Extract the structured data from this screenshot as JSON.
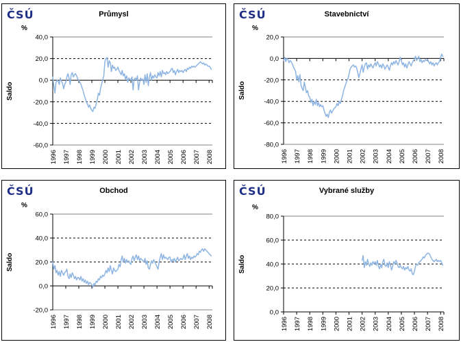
{
  "logo": {
    "text": "ČSÚ",
    "color": "#1F2F86"
  },
  "line_color": "#8DB4E2",
  "chart_data": [
    {
      "type": "line",
      "title": "Průmysl",
      "unit": "%",
      "ylabel": "Saldo",
      "series_name": "Saldo",
      "legend": "none",
      "grid": "dashed-horizontal",
      "ylim": [
        -60,
        40
      ],
      "yticks": [
        40,
        20,
        0,
        -20,
        -40,
        -60
      ],
      "ytick_labels": [
        "40,0",
        "20,0",
        "0,0",
        "-20,0",
        "-40,0",
        "-60,0"
      ],
      "x_years": [
        "1996",
        "1997",
        "1998",
        "1999",
        "2000",
        "2001",
        "2002",
        "2003",
        "2004",
        "2005",
        "2006",
        "2007",
        "2008"
      ],
      "xlim": [
        1996,
        2008.25
      ],
      "start": 1996.0,
      "points_per_year": 12,
      "monthly_values": [
        3,
        -5,
        -12,
        -2,
        0,
        -1,
        -4,
        2,
        -1,
        -3,
        -8,
        -4,
        -2,
        3,
        6,
        2,
        -4,
        5,
        7,
        3,
        5,
        6,
        4,
        1,
        0,
        -2,
        -4,
        -7,
        -10,
        -14,
        -17,
        -20,
        -22,
        -25,
        -23,
        -26,
        -28,
        -29,
        -25,
        -26,
        -22,
        -18,
        -12,
        -14,
        -8,
        -4,
        0,
        4,
        17,
        20,
        21,
        12,
        18,
        16,
        8,
        14,
        11,
        12,
        9,
        10,
        12,
        9,
        7,
        5,
        9,
        4,
        6,
        1,
        4,
        -2,
        2,
        1,
        0,
        3,
        -9,
        1,
        2,
        0,
        4,
        -9,
        -2,
        2,
        0,
        1,
        -4,
        5,
        -2,
        6,
        -5,
        3,
        7,
        0,
        4,
        2,
        5,
        3,
        2,
        7,
        4,
        8,
        3,
        9,
        6,
        7,
        5,
        8,
        6,
        7,
        8,
        10,
        11,
        7,
        9,
        5,
        8,
        10,
        7,
        9,
        8,
        9,
        7,
        9,
        10,
        8,
        11,
        10,
        12,
        11,
        13,
        12,
        13,
        12,
        13,
        14,
        15,
        16,
        17,
        16,
        15,
        16,
        14,
        15,
        14,
        13,
        13,
        12,
        10
      ]
    },
    {
      "type": "line",
      "title": "Stavebnictví",
      "unit": "%",
      "ylabel": "Saldo",
      "series_name": "Saldo",
      "legend": "none",
      "grid": "dashed-horizontal",
      "ylim": [
        -80,
        20
      ],
      "yticks": [
        20,
        0,
        -20,
        -40,
        -60,
        -80
      ],
      "ytick_labels": [
        "20,0",
        "0,0",
        "-20,0",
        "-40,0",
        "-60,0",
        "-80,0"
      ],
      "x_years": [
        "1996",
        "1997",
        "1998",
        "1999",
        "2000",
        "2001",
        "2002",
        "2003",
        "2004",
        "2005",
        "2006",
        "2007",
        "2008"
      ],
      "xlim": [
        1996,
        2008.25
      ],
      "start": 1996.0,
      "points_per_year": 12,
      "monthly_values": [
        -2,
        1,
        -3,
        0,
        -1,
        -4,
        -2,
        -3,
        -5,
        -8,
        -10,
        -12,
        -20,
        -16,
        -22,
        -15,
        -25,
        -28,
        -30,
        -22,
        -27,
        -32,
        -30,
        -35,
        -36,
        -41,
        -38,
        -44,
        -40,
        -43,
        -38,
        -44,
        -41,
        -45,
        -43,
        -45,
        -44,
        -48,
        -51,
        -54,
        -52,
        -55,
        -50,
        -48,
        -51,
        -49,
        -47,
        -46,
        -45,
        -42,
        -44,
        -40,
        -42,
        -38,
        -35,
        -30,
        -27,
        -24,
        -21,
        -19,
        -15,
        -10,
        -8,
        -7,
        -6,
        -8,
        -7,
        -9,
        -13,
        -18,
        -14,
        -10,
        -6,
        -13,
        -8,
        -5,
        -4,
        -10,
        -6,
        -8,
        -5,
        -7,
        -9,
        -6,
        -4,
        -7,
        -3,
        -5,
        -8,
        -6,
        -9,
        -5,
        -7,
        -10,
        -8,
        -6,
        -8,
        -11,
        -7,
        -4,
        -6,
        -3,
        -5,
        -2,
        -4,
        -6,
        -3,
        1,
        -2,
        -6,
        -4,
        -8,
        -5,
        -9,
        -6,
        -3,
        -5,
        -7,
        -4,
        -2,
        -1,
        2,
        -2,
        0,
        2,
        -3,
        -1,
        -4,
        -2,
        -3,
        -1,
        -2,
        -1,
        -3,
        -5,
        -3,
        -6,
        -4,
        -7,
        -5,
        -4,
        -6,
        -4,
        -3,
        1,
        4,
        2
      ]
    },
    {
      "type": "line",
      "title": "Obchod",
      "unit": "%",
      "ylabel": "Saldo",
      "series_name": "Saldo",
      "legend": "none",
      "grid": "dashed-horizontal",
      "ylim": [
        -20,
        60
      ],
      "yticks": [
        60,
        40,
        20,
        0,
        -20
      ],
      "ytick_labels": [
        "60,0",
        "40,0",
        "20,0",
        "0,0",
        "-20,0"
      ],
      "x_years": [
        "1996",
        "1997",
        "1998",
        "1999",
        "2000",
        "2001",
        "2002",
        "2003",
        "2004",
        "2005",
        "2006",
        "2007",
        "2008"
      ],
      "xlim": [
        1996,
        2008.25
      ],
      "start": 1996.0,
      "points_per_year": 12,
      "monthly_values": [
        20,
        14,
        17,
        11,
        13,
        9,
        12,
        8,
        13,
        11,
        9,
        11,
        12,
        14,
        8,
        6,
        10,
        7,
        11,
        9,
        6,
        8,
        5,
        7,
        7,
        5,
        8,
        4,
        6,
        3,
        5,
        2,
        4,
        1,
        3,
        2,
        1,
        -1,
        2,
        1,
        4,
        3,
        6,
        5,
        8,
        7,
        9,
        8,
        10,
        13,
        11,
        15,
        12,
        17,
        13,
        10,
        15,
        13,
        12,
        13,
        14,
        18,
        16,
        22,
        25,
        20,
        23,
        19,
        22,
        20,
        21,
        19,
        18,
        23,
        25,
        21,
        24,
        26,
        22,
        25,
        21,
        23,
        22,
        21,
        20,
        23,
        18,
        21,
        15,
        14,
        18,
        21,
        19,
        22,
        20,
        18,
        16,
        14,
        20,
        24,
        27,
        22,
        26,
        23,
        24,
        23,
        22,
        24,
        24,
        20,
        22,
        21,
        23,
        20,
        22,
        24,
        21,
        22,
        23,
        22,
        23,
        26,
        22,
        25,
        27,
        23,
        25,
        22,
        24,
        23,
        25,
        24,
        25,
        27,
        26,
        29,
        28,
        30,
        31,
        29,
        31,
        30,
        29,
        28,
        27,
        26,
        25
      ]
    },
    {
      "type": "line",
      "title": "Vybrané služby",
      "unit": "%",
      "ylabel": "Saldo",
      "series_name": "Saldo",
      "legend": "none",
      "grid": "dashed-horizontal",
      "ylim": [
        0,
        80
      ],
      "yticks": [
        80,
        60,
        40,
        20,
        0
      ],
      "ytick_labels": [
        "80,0",
        "60,0",
        "40,0",
        "20,0",
        "0,0"
      ],
      "x_years": [
        "1996",
        "1997",
        "1998",
        "1999",
        "2000",
        "2001",
        "2002",
        "2003",
        "2004",
        "2005",
        "2006",
        "2007",
        "2008"
      ],
      "xlim": [
        1996,
        2008.25
      ],
      "start": 2002.0,
      "points_per_year": 12,
      "monthly_values": [
        43,
        47,
        37,
        42,
        39,
        44,
        40,
        38,
        41,
        39,
        42,
        40,
        42,
        39,
        43,
        38,
        36,
        40,
        37,
        42,
        44,
        39,
        38,
        41,
        37,
        42,
        39,
        35,
        38,
        42,
        40,
        43,
        41,
        38,
        37,
        39,
        37,
        36,
        38,
        35,
        37,
        36,
        38,
        35,
        34,
        36,
        32,
        31,
        34,
        38,
        40,
        39,
        41,
        42,
        43,
        44,
        46,
        45,
        47,
        48,
        49,
        49,
        48,
        46,
        44,
        43,
        42,
        43,
        44,
        42,
        43,
        42,
        43,
        41,
        39
      ]
    }
  ]
}
